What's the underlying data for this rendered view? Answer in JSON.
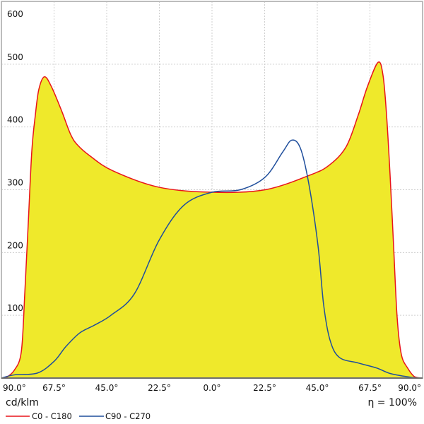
{
  "chart_data": {
    "type": "line",
    "xlabel": "",
    "ylabel": "cd/klm",
    "efficiency": "η = 100%",
    "xlim": [
      -90,
      90
    ],
    "ylim": [
      0,
      600
    ],
    "grid": true,
    "legend_placement": "bottom-left",
    "x_ticks": [
      -90,
      -67.5,
      -45,
      -22.5,
      0,
      22.5,
      45,
      67.5,
      90
    ],
    "x_tick_labels": [
      "90.0°",
      "67.5°",
      "45.0°",
      "22.5°",
      "0.0°",
      "22.5°",
      "45.0°",
      "67.5°",
      "90.0°"
    ],
    "y_ticks": [
      100,
      200,
      300,
      400,
      500,
      600
    ],
    "y_tick_labels": [
      "100",
      "200",
      "300",
      "400",
      "500",
      "600"
    ],
    "colors": {
      "fill": "#efe92b",
      "c0": "#e8141a",
      "c90": "#1f4e9c",
      "grid": "#cfcfcf",
      "frame": "#bdbdbd"
    },
    "series": [
      {
        "name": "C0 - C180",
        "color": "#e8141a",
        "filled": true,
        "x": [
          -90,
          -88.5,
          -84.6,
          -81.5,
          -80,
          -78.5,
          -77,
          -75.5,
          -74,
          -71.6,
          -68.6,
          -64.3,
          -60.4,
          -57.4,
          -52.2,
          -42.3,
          -22.7,
          0,
          22.7,
          42.3,
          50.4,
          57.4,
          62.5,
          66.4,
          71,
          73.1,
          74.6,
          76.1,
          77.6,
          79.1,
          80.9,
          83.6,
          86.6,
          90
        ],
        "values": [
          0,
          0,
          12,
          42,
          136,
          249,
          362,
          419,
          460,
          480,
          464,
          426,
          388,
          371,
          354,
          330,
          304,
          296,
          300,
          324,
          340,
          369,
          419,
          464,
          503,
          482,
          419,
          324,
          211,
          98,
          38,
          16,
          2,
          0
        ]
      },
      {
        "name": "C90 - C270",
        "color": "#1f4e9c",
        "filled": false,
        "x": [
          -90,
          -84.6,
          -74.6,
          -67.4,
          -62.5,
          -56.5,
          -50.4,
          -43.2,
          -33.2,
          -22.7,
          -12.1,
          0,
          12.1,
          22.7,
          30.2,
          34.1,
          37.8,
          41.4,
          45.3,
          47.7,
          50.4,
          54.4,
          62.5,
          70.4,
          76.4,
          85.5,
          90
        ],
        "values": [
          0,
          5,
          8,
          27,
          50,
          72,
          84,
          100,
          134,
          219,
          275,
          296,
          300,
          320,
          360,
          379,
          366,
          309,
          211,
          117,
          61,
          33,
          24,
          16,
          7,
          1,
          0
        ]
      }
    ]
  }
}
